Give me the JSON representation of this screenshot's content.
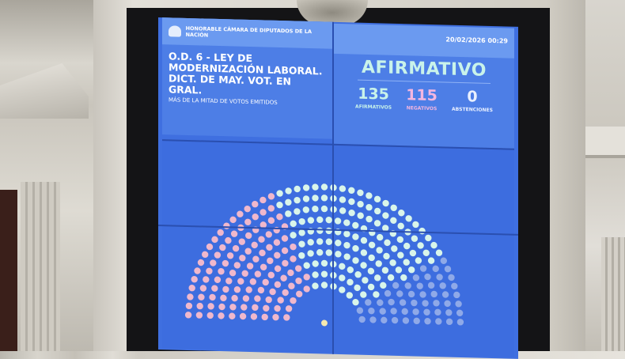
{
  "header": {
    "institution": "HONORABLE CÁMARA DE DIPUTADOS DE LA NACIÓN",
    "datetime": "20/02/2026 00:29"
  },
  "motion": {
    "title": "O.D. 6 - LEY DE MODERNIZACIÓN LABORAL. DICT. DE MAY. VOT. EN GRAL.",
    "majority": "MÁS DE LA MITAD DE VOTOS EMITIDOS"
  },
  "result": {
    "outcome": "AFIRMATIVO",
    "afirmativos": {
      "count": "135",
      "label": "AFIRMATIVOS",
      "color": "#c9f3ea"
    },
    "negativos": {
      "count": "115",
      "label": "NEGATIVOS",
      "color": "#f3b6e0"
    },
    "abstenciones": {
      "count": "0",
      "label": "ABSTENCIONES",
      "color": "#e9f0ff"
    }
  },
  "colors": {
    "screen": "#3f6fe0",
    "affirmative_seat": "#d9f5ea",
    "negative_seat": "#f0b8cc"
  }
}
